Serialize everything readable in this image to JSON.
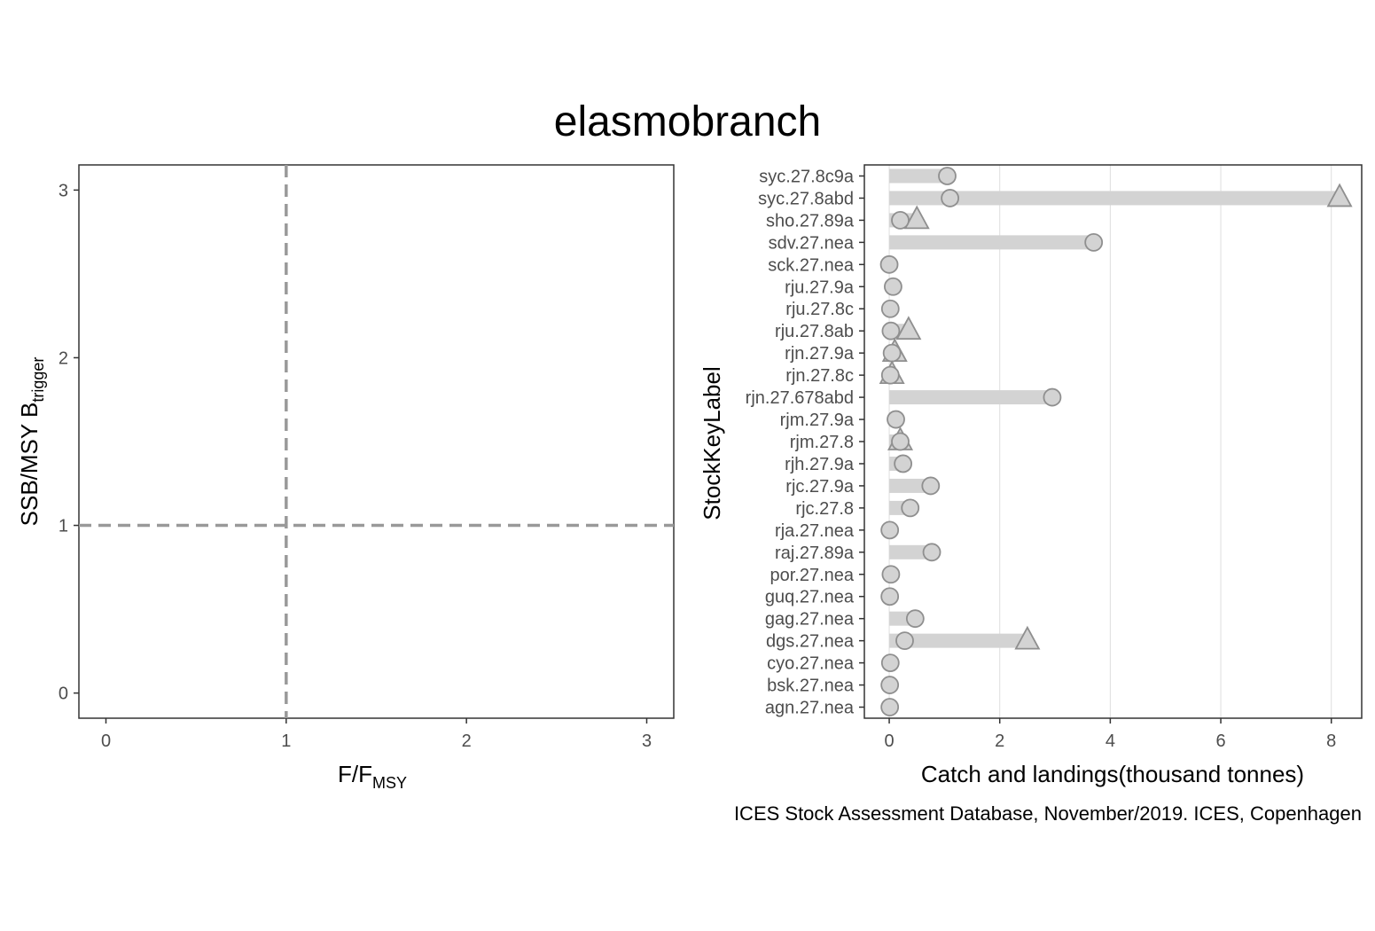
{
  "title": "elasmobranch",
  "caption": "ICES Stock Assessment Database, November/2019. ICES, Copenhagen",
  "chart_data": [
    {
      "type": "scatter",
      "panel": "left",
      "xlabel": {
        "main": "F/F",
        "sub": "MSY"
      },
      "ylabel": {
        "main": "SSB/MSY B",
        "sub": "trigger"
      },
      "xlim": [
        -0.15,
        3.15
      ],
      "ylim": [
        -0.15,
        3.15
      ],
      "x_ticks": [
        0,
        1,
        2,
        3
      ],
      "y_ticks": [
        0,
        1,
        2,
        3
      ],
      "reference_lines": {
        "x": 1,
        "y": 1,
        "style": "dashed",
        "color": "#999999"
      },
      "points": []
    },
    {
      "type": "bar",
      "orientation": "horizontal",
      "panel": "right",
      "xlabel": "Catch and landings(thousand tonnes)",
      "ylabel": "StockKeyLabel",
      "xlim": [
        -0.45,
        8.55
      ],
      "x_ticks": [
        0,
        2,
        4,
        6,
        8
      ],
      "grid": "vertical",
      "bar_color": "#d3d3d3",
      "categories": [
        "syc.27.8c9a",
        "syc.27.8abd",
        "sho.27.89a",
        "sdv.27.nea",
        "sck.27.nea",
        "rju.27.9a",
        "rju.27.8c",
        "rju.27.8ab",
        "rjn.27.9a",
        "rjn.27.8c",
        "rjn.27.678abd",
        "rjm.27.9a",
        "rjm.27.8",
        "rjh.27.9a",
        "rjc.27.9a",
        "rjc.27.8",
        "rja.27.nea",
        "raj.27.89a",
        "por.27.nea",
        "guq.27.nea",
        "gag.27.nea",
        "dgs.27.nea",
        "cyo.27.nea",
        "bsk.27.nea",
        "agn.27.nea"
      ],
      "series": [
        {
          "name": "circle",
          "marker": "circle",
          "values": [
            1.05,
            1.1,
            0.2,
            3.7,
            0.0,
            0.07,
            0.02,
            0.03,
            0.05,
            0.02,
            2.95,
            0.12,
            0.2,
            0.25,
            0.75,
            0.38,
            0.01,
            0.77,
            0.03,
            0.01,
            0.47,
            0.28,
            0.02,
            0.01,
            0.01
          ]
        },
        {
          "name": "triangle",
          "marker": "triangle",
          "values": [
            null,
            8.15,
            0.5,
            null,
            null,
            null,
            null,
            0.35,
            0.1,
            0.05,
            null,
            null,
            0.2,
            null,
            null,
            null,
            null,
            null,
            null,
            null,
            null,
            2.5,
            null,
            null,
            null
          ]
        }
      ]
    }
  ]
}
